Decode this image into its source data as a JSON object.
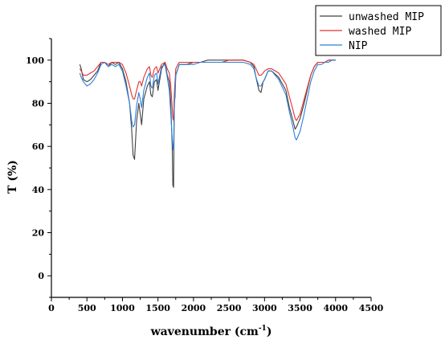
{
  "chart_data": {
    "type": "line",
    "xlabel": "wavenumber (cm",
    "xlabel_sup": "-1",
    "xlabel_close": ")",
    "ylabel": "T (%)",
    "xlim": [
      0,
      4500
    ],
    "ylim": [
      -10,
      110
    ],
    "xticks": [
      0,
      500,
      1000,
      1500,
      2000,
      2500,
      3000,
      3500,
      4000,
      4500
    ],
    "yticks": [
      0,
      20,
      40,
      60,
      80,
      100
    ],
    "grid": false,
    "legend_position": "top-right",
    "series": [
      {
        "name": "unwashed MIP",
        "color": "#404040",
        "x": [
          400,
          420,
          450,
          500,
          550,
          600,
          650,
          700,
          750,
          800,
          850,
          900,
          950,
          1000,
          1050,
          1100,
          1130,
          1150,
          1170,
          1200,
          1230,
          1250,
          1270,
          1300,
          1350,
          1380,
          1400,
          1420,
          1450,
          1480,
          1500,
          1550,
          1600,
          1630,
          1660,
          1680,
          1700,
          1710,
          1720,
          1730,
          1740,
          1750,
          1780,
          1800,
          1850,
          1900,
          2000,
          2100,
          2200,
          2300,
          2400,
          2500,
          2600,
          2700,
          2800,
          2850,
          2880,
          2920,
          2950,
          2980,
          3000,
          3050,
          3100,
          3200,
          3300,
          3350,
          3400,
          3430,
          3450,
          3500,
          3550,
          3600,
          3650,
          3700,
          3750,
          3800,
          3850,
          3900,
          3950,
          4000
        ],
        "y": [
          98,
          96,
          91,
          90,
          91,
          93,
          95,
          99,
          99,
          97,
          99,
          98,
          99,
          96,
          90,
          80,
          68,
          56,
          54,
          72,
          80,
          75,
          70,
          82,
          88,
          90,
          84,
          83,
          90,
          91,
          86,
          96,
          99,
          93,
          90,
          80,
          60,
          42,
          41,
          80,
          83,
          93,
          96,
          98,
          98,
          98,
          99,
          99,
          100,
          100,
          100,
          100,
          100,
          100,
          99,
          97,
          92,
          86,
          85,
          90,
          91,
          95,
          95,
          92,
          86,
          78,
          72,
          68,
          69,
          73,
          79,
          86,
          93,
          97,
          99,
          99,
          99,
          100,
          100,
          100
        ]
      },
      {
        "name": "washed MIP",
        "color": "#e03030",
        "x": [
          400,
          420,
          450,
          500,
          550,
          600,
          650,
          700,
          750,
          800,
          850,
          900,
          950,
          1000,
          1050,
          1100,
          1130,
          1150,
          1170,
          1200,
          1230,
          1250,
          1270,
          1300,
          1350,
          1380,
          1400,
          1420,
          1450,
          1480,
          1500,
          1550,
          1600,
          1630,
          1660,
          1680,
          1700,
          1710,
          1720,
          1730,
          1740,
          1750,
          1780,
          1800,
          1850,
          1900,
          2000,
          2100,
          2200,
          2300,
          2400,
          2500,
          2600,
          2700,
          2800,
          2850,
          2880,
          2920,
          2950,
          2980,
          3000,
          3050,
          3100,
          3200,
          3300,
          3350,
          3400,
          3430,
          3450,
          3500,
          3550,
          3600,
          3650,
          3700,
          3750,
          3800,
          3850,
          3900,
          3950,
          4000
        ],
        "y": [
          96,
          95,
          93,
          93,
          94,
          95,
          97,
          99,
          99,
          98,
          99,
          99,
          99,
          98,
          94,
          88,
          84,
          82,
          82,
          86,
          90,
          90,
          88,
          92,
          96,
          97,
          93,
          92,
          96,
          97,
          94,
          98,
          99,
          96,
          94,
          88,
          78,
          73,
          72,
          84,
          90,
          96,
          98,
          99,
          99,
          99,
          99,
          99,
          99,
          99,
          99,
          100,
          100,
          100,
          99,
          98,
          96,
          93,
          93,
          94,
          95,
          96,
          96,
          94,
          89,
          83,
          77,
          73,
          72,
          75,
          81,
          87,
          93,
          97,
          99,
          99,
          99,
          100,
          100,
          100
        ]
      },
      {
        "name": "NIP",
        "color": "#2f7fd6",
        "x": [
          400,
          420,
          450,
          500,
          550,
          600,
          650,
          700,
          750,
          800,
          850,
          900,
          950,
          1000,
          1050,
          1100,
          1130,
          1150,
          1170,
          1200,
          1230,
          1250,
          1270,
          1300,
          1350,
          1380,
          1400,
          1420,
          1450,
          1480,
          1500,
          1550,
          1600,
          1630,
          1660,
          1680,
          1700,
          1710,
          1720,
          1730,
          1740,
          1750,
          1780,
          1800,
          1850,
          1900,
          2000,
          2100,
          2200,
          2300,
          2400,
          2500,
          2600,
          2700,
          2800,
          2850,
          2880,
          2920,
          2950,
          2980,
          3000,
          3050,
          3100,
          3200,
          3300,
          3350,
          3400,
          3430,
          3450,
          3500,
          3550,
          3600,
          3650,
          3700,
          3750,
          3800,
          3850,
          3900,
          3950,
          4000
        ],
        "y": [
          94,
          92,
          90,
          88,
          89,
          91,
          94,
          98,
          99,
          97,
          98,
          97,
          98,
          95,
          88,
          80,
          72,
          69,
          70,
          79,
          85,
          82,
          78,
          86,
          92,
          94,
          88,
          87,
          93,
          94,
          89,
          97,
          98,
          92,
          86,
          75,
          64,
          60,
          58,
          78,
          86,
          93,
          96,
          98,
          98,
          98,
          98,
          99,
          99,
          99,
          99,
          99,
          99,
          99,
          98,
          96,
          92,
          88,
          88,
          90,
          91,
          95,
          95,
          91,
          84,
          76,
          69,
          64,
          63,
          67,
          74,
          82,
          90,
          95,
          98,
          98,
          99,
          99,
          100,
          100
        ]
      }
    ]
  }
}
